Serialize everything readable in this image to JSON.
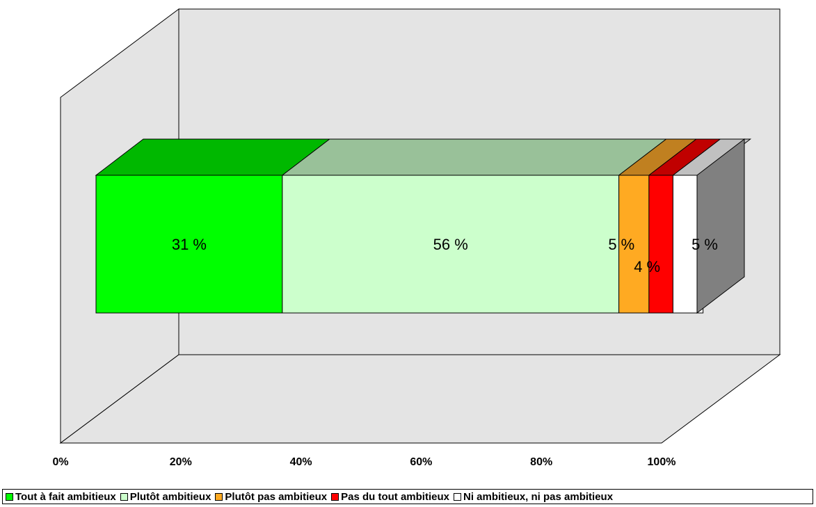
{
  "chart_data": {
    "type": "bar",
    "orientation": "horizontal",
    "stacked": "100%",
    "three_d": true,
    "categories": [
      ""
    ],
    "series": [
      {
        "name": "Tout à fait ambitieux",
        "value": 31,
        "label": "31 %",
        "color": "#00ff00",
        "top_color": "#00b800"
      },
      {
        "name": "Plutôt ambitieux",
        "value": 56,
        "label": "56 %",
        "color": "#ccffcc",
        "top_color": "#99c199"
      },
      {
        "name": "Plutôt pas ambitieux",
        "value": 5,
        "label": "5 %",
        "color": "#ffaa22",
        "top_color": "#c08020"
      },
      {
        "name": "Pas du tout ambitieux",
        "value": 4,
        "label": "4 %",
        "color": "#ff0000",
        "top_color": "#c00000"
      },
      {
        "name": "Ni ambitieux, ni pas ambitieux",
        "value": 5,
        "label": "5 %",
        "color": "#ffffff",
        "top_color": "#c0c0c0"
      }
    ],
    "xaxis": {
      "min": 0,
      "max": 100,
      "ticks": [
        "0%",
        "20%",
        "40%",
        "60%",
        "80%",
        "100%"
      ]
    },
    "title": "",
    "xlabel": "",
    "ylabel": "",
    "grid": false,
    "legend_position": "bottom",
    "wall_color": "#e4e4e4",
    "side_color": "#808080"
  }
}
